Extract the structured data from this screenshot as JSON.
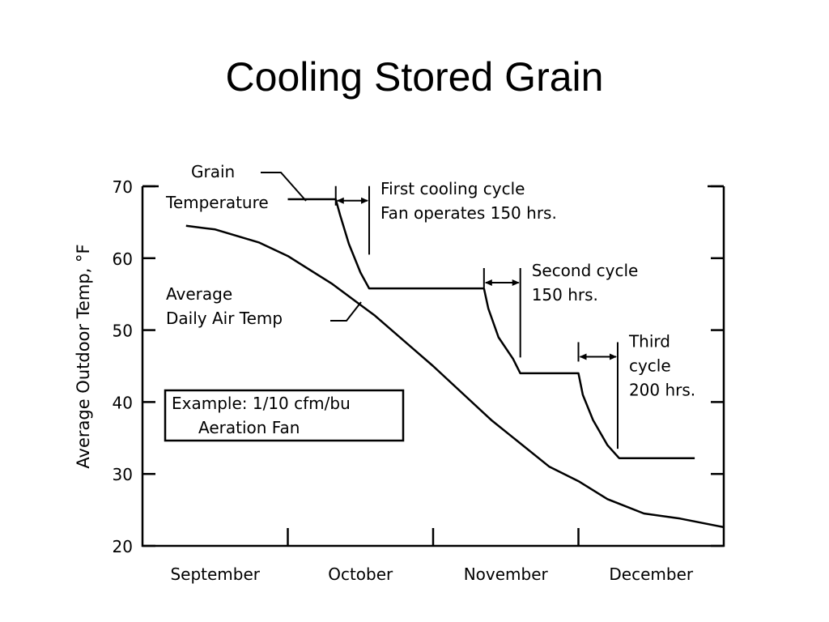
{
  "page": {
    "title": "Cooling Stored Grain"
  },
  "chart_data": {
    "type": "line",
    "ylabel": "Average Outdoor Temp, °F",
    "ylim": [
      20,
      70
    ],
    "yticks": [
      20,
      30,
      40,
      50,
      60,
      70
    ],
    "xlim": [
      0,
      4
    ],
    "months": [
      {
        "label": "September",
        "at": 0.5
      },
      {
        "label": "October",
        "at": 1.5
      },
      {
        "label": "November",
        "at": 2.5
      },
      {
        "label": "December",
        "at": 3.5
      }
    ],
    "month_dividers": [
      1,
      2,
      3
    ],
    "grid": false,
    "series": [
      {
        "key": "air",
        "x": [
          0.3,
          0.5,
          0.8,
          1.0,
          1.3,
          1.6,
          2.0,
          2.4,
          2.8,
          3.0,
          3.2,
          3.45,
          3.7,
          4.0
        ],
        "y": [
          64.5,
          64.0,
          62.2,
          60.3,
          56.5,
          52.0,
          45.0,
          37.5,
          31.0,
          29.0,
          26.5,
          24.5,
          23.8,
          22.6
        ]
      },
      {
        "key": "grain",
        "x": [
          1.0,
          1.33,
          1.36,
          1.42,
          1.5,
          1.56,
          2.35,
          2.38,
          2.45,
          2.55,
          2.6,
          3.0,
          3.03,
          3.1,
          3.2,
          3.28,
          3.8
        ],
        "y": [
          68.2,
          68.2,
          66.0,
          62.0,
          58.0,
          55.8,
          55.8,
          53.0,
          49.0,
          46.0,
          44.0,
          44.0,
          41.0,
          37.5,
          34.0,
          32.2,
          32.2
        ]
      }
    ],
    "cycles": [
      {
        "x_start": 1.33,
        "x_end": 1.56,
        "arrow_y": 68.0,
        "drop_to": 60.5,
        "lines": [
          "First cooling cycle",
          "Fan operates 150 hrs."
        ]
      },
      {
        "x_start": 2.35,
        "x_end": 2.6,
        "arrow_y": 56.6,
        "drop_to": 46.2,
        "lines": [
          "Second cycle",
          "150 hrs."
        ]
      },
      {
        "x_start": 3.0,
        "x_end": 3.27,
        "arrow_y": 46.3,
        "drop_to": 33.5,
        "lines": [
          "Third",
          "cycle",
          "200 hrs."
        ]
      }
    ],
    "annotations": {
      "grain_label": [
        "Grain",
        "Temperature"
      ],
      "air_label": [
        "Average",
        "Daily Air Temp"
      ],
      "example_box": [
        "Example: 1/10 cfm/bu",
        "Aeration Fan"
      ]
    }
  }
}
